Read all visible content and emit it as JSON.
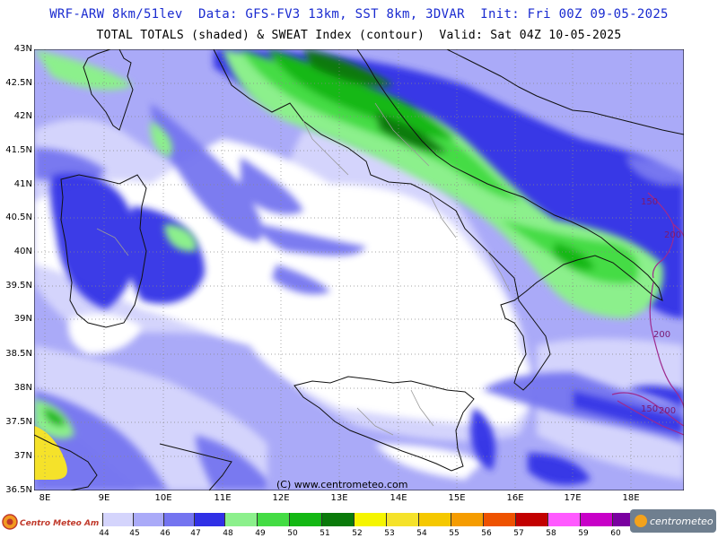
{
  "header": {
    "line1": "WRF-ARW 8km/51lev  Data: GFS-FV3 13km, SST 8km, 3DVAR  Init: Fri 00Z 09-05-2025",
    "line2": "TOTAL TOTALS (shaded) & SWEAT Index (contour)  Valid: Sat 04Z 10-05-2025"
  },
  "axes": {
    "lat_labels": [
      "43N",
      "42.5N",
      "42N",
      "41.5N",
      "41N",
      "40.5N",
      "40N",
      "39.5N",
      "39N",
      "38.5N",
      "38N",
      "37.5N",
      "37N",
      "36.5N"
    ],
    "lon_labels": [
      "8E",
      "9E",
      "10E",
      "11E",
      "12E",
      "13E",
      "14E",
      "15E",
      "16E",
      "17E",
      "18E"
    ]
  },
  "contours": {
    "labels": [
      "150",
      "200",
      "200",
      "150",
      "200"
    ]
  },
  "copyright": "(C) www.centrometeo.com",
  "legend": {
    "values": [
      "44",
      "45",
      "46",
      "47",
      "48",
      "49",
      "50",
      "51",
      "52",
      "53",
      "54",
      "55",
      "56",
      "57",
      "58",
      "59",
      "60"
    ],
    "colors": [
      "#d4d4fc",
      "#aaaaf8",
      "#7474f0",
      "#3030e6",
      "#8cf08c",
      "#44dc44",
      "#14b814",
      "#0a7a0a",
      "#f5f500",
      "#f5e22a",
      "#f5c800",
      "#f59c00",
      "#ee5200",
      "#c20000",
      "#ff5aff",
      "#c800c8",
      "#7a00a0"
    ]
  },
  "logos": {
    "left": "Centro Meteo Amatori",
    "right": "centrometeo"
  }
}
